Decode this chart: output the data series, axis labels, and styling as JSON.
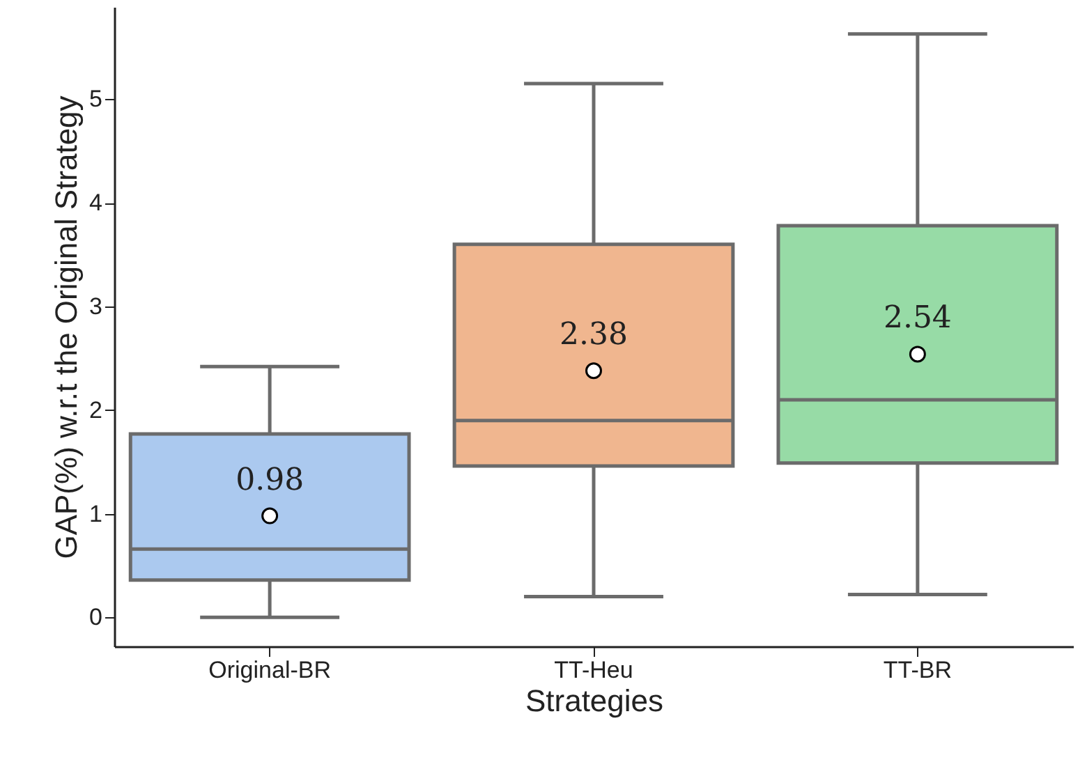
{
  "chart_data": {
    "type": "box",
    "xlabel": "Strategies",
    "ylabel": "GAP(%) w.r.t the Original Strategy",
    "categories": [
      "Original-BR",
      "TT-Heu",
      "TT-BR"
    ],
    "boxes": [
      {
        "low": 0,
        "q1": 0.36,
        "median": 0.66,
        "q3": 1.77,
        "high": 2.42,
        "mean": 0.98
      },
      {
        "low": 0.2,
        "q1": 1.46,
        "median": 1.9,
        "q3": 3.6,
        "high": 5.15,
        "mean": 2.38
      },
      {
        "low": 0.22,
        "q1": 1.49,
        "median": 2.1,
        "q3": 3.78,
        "high": 5.63,
        "mean": 2.54
      }
    ],
    "colors": [
      "#abc9ef",
      "#f0b68f",
      "#97dba6"
    ],
    "annotations": [
      "0.98",
      "2.38",
      "2.54"
    ],
    "ylim": [
      -0.28,
      5.89
    ],
    "yticks": [
      0,
      1,
      2,
      3,
      4,
      5
    ],
    "grid": false
  }
}
